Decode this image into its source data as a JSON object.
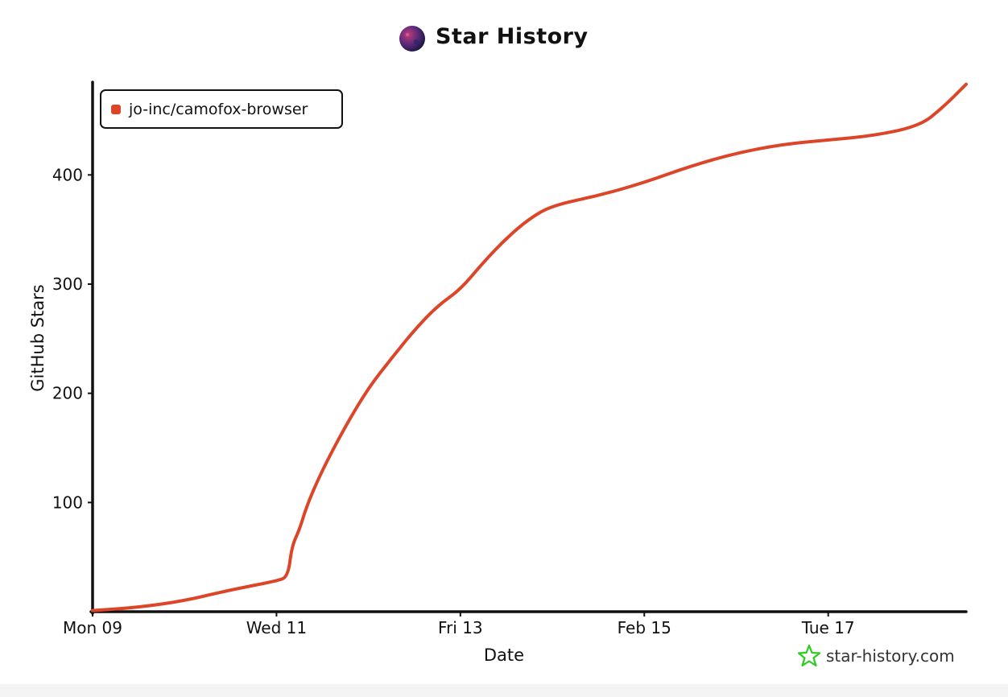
{
  "header": {
    "title": "Star History"
  },
  "legend": {
    "label": "jo-inc/camofox-browser"
  },
  "watermark": {
    "text": "star-history.com",
    "icon": "star-icon"
  },
  "colors": {
    "series": "#dd4528",
    "axis": "#111111",
    "watermark_icon": "#2ecc20"
  },
  "chart_data": {
    "type": "line",
    "title": "Star History",
    "xlabel": "Date",
    "ylabel": "GitHub Stars",
    "x_ticks": [
      "Mon 09",
      "Wed 11",
      "Fri 13",
      "Feb 15",
      "Tue 17"
    ],
    "y_ticks": [
      100,
      200,
      300,
      400
    ],
    "xlim": [
      "2026-02-09T00:00",
      "2026-02-18T12:00"
    ],
    "ylim": [
      0,
      485
    ],
    "grid": false,
    "legend_position": "top-left",
    "series": [
      {
        "name": "jo-inc/camofox-browser",
        "points": [
          {
            "x": "2026-02-09T00:00",
            "y": 1
          },
          {
            "x": "2026-02-09T12:00",
            "y": 4
          },
          {
            "x": "2026-02-10T00:00",
            "y": 10
          },
          {
            "x": "2026-02-10T12:00",
            "y": 20
          },
          {
            "x": "2026-02-11T00:00",
            "y": 28
          },
          {
            "x": "2026-02-11T03:00",
            "y": 32
          },
          {
            "x": "2026-02-11T04:00",
            "y": 60
          },
          {
            "x": "2026-02-11T06:00",
            "y": 75
          },
          {
            "x": "2026-02-11T08:00",
            "y": 98
          },
          {
            "x": "2026-02-11T12:00",
            "y": 130
          },
          {
            "x": "2026-02-11T18:00",
            "y": 170
          },
          {
            "x": "2026-02-12T00:00",
            "y": 205
          },
          {
            "x": "2026-02-12T06:00",
            "y": 232
          },
          {
            "x": "2026-02-12T12:00",
            "y": 258
          },
          {
            "x": "2026-02-12T18:00",
            "y": 280
          },
          {
            "x": "2026-02-13T00:00",
            "y": 295
          },
          {
            "x": "2026-02-13T06:00",
            "y": 320
          },
          {
            "x": "2026-02-13T12:00",
            "y": 342
          },
          {
            "x": "2026-02-13T18:00",
            "y": 360
          },
          {
            "x": "2026-02-14T00:00",
            "y": 372
          },
          {
            "x": "2026-02-14T12:00",
            "y": 381
          },
          {
            "x": "2026-02-15T00:00",
            "y": 393
          },
          {
            "x": "2026-02-15T12:00",
            "y": 408
          },
          {
            "x": "2026-02-16T00:00",
            "y": 420
          },
          {
            "x": "2026-02-16T12:00",
            "y": 428
          },
          {
            "x": "2026-02-17T00:00",
            "y": 432
          },
          {
            "x": "2026-02-17T12:00",
            "y": 436
          },
          {
            "x": "2026-02-18T00:00",
            "y": 445
          },
          {
            "x": "2026-02-18T06:00",
            "y": 462
          },
          {
            "x": "2026-02-18T12:00",
            "y": 483
          }
        ]
      }
    ]
  }
}
